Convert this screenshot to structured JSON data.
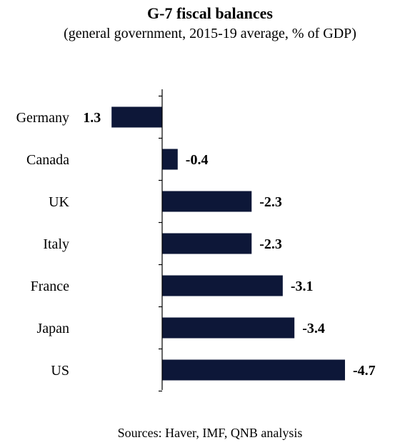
{
  "chart_data": {
    "type": "bar",
    "orientation": "horizontal",
    "title": "G-7 fiscal balances",
    "subtitle": "(general government, 2015-19 average, % of GDP)",
    "categories": [
      "Germany",
      "Canada",
      "UK",
      "Italy",
      "France",
      "Japan",
      "US"
    ],
    "values": [
      1.3,
      -0.4,
      -2.3,
      -2.3,
      -3.1,
      -3.4,
      -4.7
    ],
    "value_labels": [
      "1.3",
      "-0.4",
      "-2.3",
      "-2.3",
      "-3.1",
      "-3.4",
      "-4.7"
    ],
    "xlim": [
      1.3,
      -4.7
    ],
    "axis_direction": "reversed",
    "bar_color": "#0d1738",
    "grid": false,
    "legend": "none",
    "xlabel": "",
    "ylabel": "",
    "source": "Sources: Haver, IMF, QNB analysis"
  }
}
